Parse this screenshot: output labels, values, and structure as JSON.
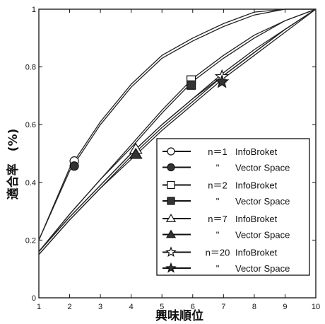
{
  "chart_data": {
    "type": "line",
    "xlabel": "興味順位",
    "ylabel": "適合率　(%)",
    "xlim": [
      1,
      10
    ],
    "ylim": [
      0,
      1
    ],
    "x": [
      1,
      2,
      3,
      4,
      5,
      6,
      7,
      8,
      9,
      10
    ],
    "xticks": [
      "1",
      "2",
      "3",
      "4",
      "5",
      "6",
      "7",
      "8",
      "9",
      "10"
    ],
    "yticks": [
      {
        "value": 0,
        "label": "0"
      },
      {
        "value": 0.2,
        "label": "0.2"
      },
      {
        "value": 0.4,
        "label": "0.4"
      },
      {
        "value": 0.6,
        "label": "0.6"
      },
      {
        "value": 0.8,
        "label": "0.8"
      },
      {
        "value": 1,
        "label": "1"
      }
    ],
    "grid": false,
    "legend_position": "bottom-right",
    "series": [
      {
        "n_label": "n＝1",
        "name": "InfoBroket",
        "marker": "circle-open",
        "marker_x": 2.15,
        "values": [
          0.2,
          0.45,
          0.61,
          0.74,
          0.84,
          0.9,
          0.95,
          0.99,
          1.0,
          1.0
        ]
      },
      {
        "n_label": "\"",
        "name": "Vector Space",
        "marker": "circle-filled",
        "marker_x": 2.15,
        "values": [
          0.2,
          0.44,
          0.6,
          0.73,
          0.83,
          0.89,
          0.94,
          0.98,
          1.0,
          1.0
        ]
      },
      {
        "n_label": "n＝2",
        "name": "InfoBroket",
        "marker": "square-open",
        "marker_x": 5.95,
        "values": [
          0.16,
          0.29,
          0.41,
          0.53,
          0.65,
          0.76,
          0.84,
          0.91,
          0.96,
          1.0
        ]
      },
      {
        "n_label": "\"",
        "name": "Vector Space",
        "marker": "square-filled",
        "marker_x": 5.95,
        "values": [
          0.16,
          0.29,
          0.41,
          0.52,
          0.64,
          0.75,
          0.83,
          0.9,
          0.96,
          1.0
        ]
      },
      {
        "n_label": "n＝7",
        "name": "InfoBroket",
        "marker": "triangle-open",
        "marker_x": 4.15,
        "values": [
          0.16,
          0.28,
          0.39,
          0.5,
          0.6,
          0.69,
          0.78,
          0.86,
          0.93,
          1.0
        ]
      },
      {
        "n_label": "\"",
        "name": "Vector Space",
        "marker": "triangle-filled",
        "marker_x": 4.15,
        "values": [
          0.15,
          0.27,
          0.38,
          0.49,
          0.59,
          0.68,
          0.77,
          0.85,
          0.93,
          1.0
        ]
      },
      {
        "n_label": "n＝20",
        "name": "InfoBroket",
        "marker": "star-open",
        "marker_x": 6.95,
        "values": [
          0.16,
          0.28,
          0.39,
          0.5,
          0.6,
          0.69,
          0.77,
          0.85,
          0.93,
          1.0
        ]
      },
      {
        "n_label": "\"",
        "name": "Vector Space",
        "marker": "star-filled",
        "marker_x": 6.95,
        "values": [
          0.15,
          0.27,
          0.38,
          0.48,
          0.58,
          0.67,
          0.76,
          0.84,
          0.92,
          1.0
        ]
      }
    ]
  }
}
